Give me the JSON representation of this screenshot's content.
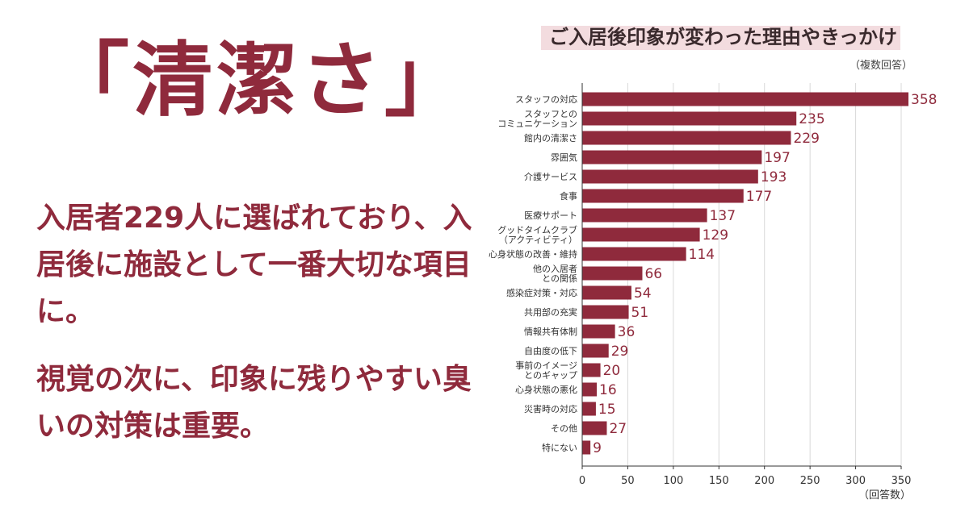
{
  "headline": "「清潔さ」",
  "paragraphs": [
    "入居者229人に選ばれており、入居後に施設として一番大切な項目に。",
    "視覚の次に、印象に残りやすい臭いの対策は重要。"
  ],
  "chart_data": {
    "type": "bar",
    "orientation": "horizontal",
    "title": "ご入居後印象が変わった理由やきっかけ",
    "note": "（複数回答）",
    "xlabel": "（回答数）",
    "xlim": [
      0,
      350
    ],
    "xticks": [
      0,
      50,
      100,
      150,
      200,
      250,
      300,
      350
    ],
    "categories": [
      [
        "スタッフの対応"
      ],
      [
        "スタッフとの",
        "コミュニケーション"
      ],
      [
        "館内の清潔さ"
      ],
      [
        "雰囲気"
      ],
      [
        "介護サービス"
      ],
      [
        "食事"
      ],
      [
        "医療サポート"
      ],
      [
        "グッドタイムクラブ",
        "（アクティビティ）"
      ],
      [
        "心身状態の改善・維持"
      ],
      [
        "他の入居者",
        "との関係"
      ],
      [
        "感染症対策・対応"
      ],
      [
        "共用部の充実"
      ],
      [
        "情報共有体制"
      ],
      [
        "自由度の低下"
      ],
      [
        "事前のイメージ",
        "とのギャップ"
      ],
      [
        "心身状態の悪化"
      ],
      [
        "災害時の対応"
      ],
      [
        "その他"
      ],
      [
        "特にない"
      ]
    ],
    "values": [
      358,
      235,
      229,
      197,
      193,
      177,
      137,
      129,
      114,
      66,
      54,
      51,
      36,
      29,
      20,
      16,
      15,
      27,
      9
    ],
    "bar_color": "#8f2a3c"
  }
}
